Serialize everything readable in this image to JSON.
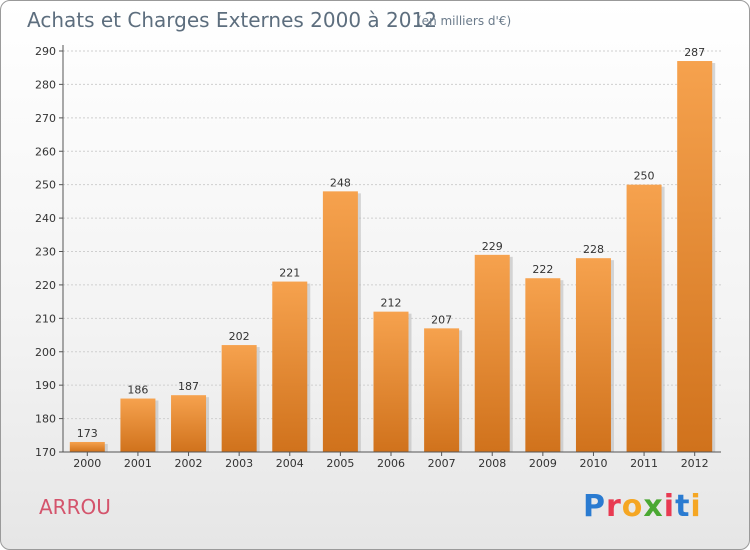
{
  "header": {
    "title": "Achats et Charges Externes 2000 à 2012",
    "unit": "(en milliers d'€)"
  },
  "footer": {
    "commune": "ARROU",
    "logo": [
      "P",
      "r",
      "o",
      "x",
      "i",
      "t",
      "i"
    ]
  },
  "colors": {
    "bar_top": "#f6a24e",
    "bar_bottom": "#d0721c",
    "grid": "#cfcfcf",
    "logo": [
      "#2a7bd1",
      "#e83a52",
      "#f5a623",
      "#4aa832",
      "#e83a52",
      "#2a7bd1",
      "#f5a623"
    ]
  },
  "chart_data": {
    "type": "bar",
    "categories": [
      "2000",
      "2001",
      "2002",
      "2003",
      "2004",
      "2005",
      "2006",
      "2007",
      "2008",
      "2009",
      "2010",
      "2011",
      "2012"
    ],
    "values": [
      173,
      186,
      187,
      202,
      221,
      248,
      212,
      207,
      229,
      222,
      228,
      250,
      287
    ],
    "value_labels": [
      "173",
      "186",
      "187",
      "202",
      "221",
      "248",
      "212",
      "207",
      "229",
      "222",
      "228",
      "250",
      "287"
    ],
    "yticks": [
      "170",
      "180",
      "190",
      "200",
      "210",
      "220",
      "230",
      "240",
      "250",
      "260",
      "270",
      "280",
      "290"
    ],
    "ylim": [
      170,
      290
    ],
    "grid": true
  }
}
